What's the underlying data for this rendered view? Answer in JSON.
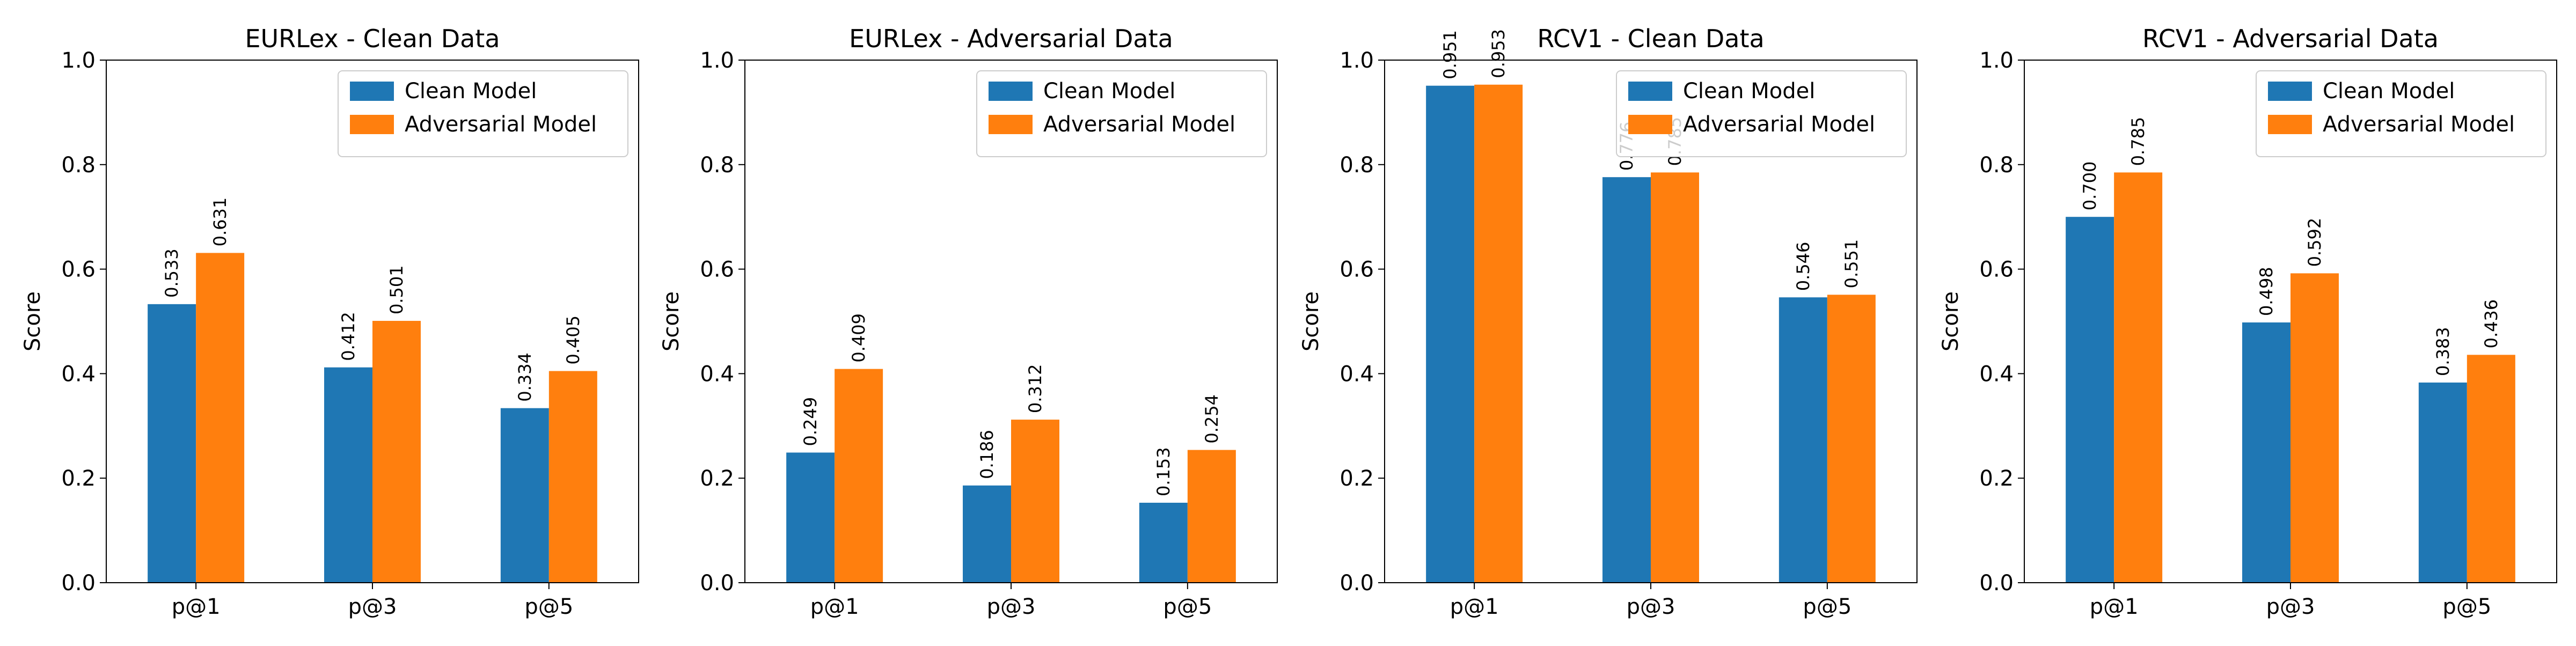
{
  "colors": {
    "clean": "#1f77b4",
    "adversarial": "#ff7f0e"
  },
  "chart_data": [
    {
      "type": "bar",
      "title": "EURLex - Clean Data",
      "xlabel": "",
      "ylabel": "Score",
      "ylim": [
        0,
        1.0
      ],
      "yticks": [
        "0.0",
        "0.2",
        "0.4",
        "0.6",
        "0.8",
        "1.0"
      ],
      "categories": [
        "p@1",
        "p@3",
        "p@5"
      ],
      "legend": "top-right",
      "series": [
        {
          "name": "Clean Model",
          "values": [
            0.533,
            0.412,
            0.334
          ],
          "labels": [
            "0.533",
            "0.412",
            "0.334"
          ]
        },
        {
          "name": "Adversarial Model",
          "values": [
            0.631,
            0.501,
            0.405
          ],
          "labels": [
            "0.631",
            "0.501",
            "0.405"
          ]
        }
      ]
    },
    {
      "type": "bar",
      "title": "EURLex - Adversarial Data",
      "xlabel": "",
      "ylabel": "Score",
      "ylim": [
        0,
        1.0
      ],
      "yticks": [
        "0.0",
        "0.2",
        "0.4",
        "0.6",
        "0.8",
        "1.0"
      ],
      "categories": [
        "p@1",
        "p@3",
        "p@5"
      ],
      "legend": "top-right",
      "series": [
        {
          "name": "Clean Model",
          "values": [
            0.249,
            0.186,
            0.153
          ],
          "labels": [
            "0.249",
            "0.186",
            "0.153"
          ]
        },
        {
          "name": "Adversarial Model",
          "values": [
            0.409,
            0.312,
            0.254
          ],
          "labels": [
            "0.409",
            "0.312",
            "0.254"
          ]
        }
      ]
    },
    {
      "type": "bar",
      "title": "RCV1 - Clean Data",
      "xlabel": "",
      "ylabel": "Score",
      "ylim": [
        0,
        1.0
      ],
      "yticks": [
        "0.0",
        "0.2",
        "0.4",
        "0.6",
        "0.8",
        "1.0"
      ],
      "categories": [
        "p@1",
        "p@3",
        "p@5"
      ],
      "legend": "top-right",
      "series": [
        {
          "name": "Clean Model",
          "values": [
            0.951,
            0.776,
            0.546
          ],
          "labels": [
            "0.951",
            "0.776",
            "0.546"
          ]
        },
        {
          "name": "Adversarial Model",
          "values": [
            0.953,
            0.785,
            0.551
          ],
          "labels": [
            "0.953",
            "0.785",
            "0.551"
          ]
        }
      ]
    },
    {
      "type": "bar",
      "title": "RCV1 - Adversarial Data",
      "xlabel": "",
      "ylabel": "Score",
      "ylim": [
        0,
        1.0
      ],
      "yticks": [
        "0.0",
        "0.2",
        "0.4",
        "0.6",
        "0.8",
        "1.0"
      ],
      "categories": [
        "p@1",
        "p@3",
        "p@5"
      ],
      "legend": "top-right",
      "series": [
        {
          "name": "Clean Model",
          "values": [
            0.7,
            0.498,
            0.383
          ],
          "labels": [
            "0.700",
            "0.498",
            "0.383"
          ]
        },
        {
          "name": "Adversarial Model",
          "values": [
            0.785,
            0.592,
            0.436
          ],
          "labels": [
            "0.785",
            "0.592",
            "0.436"
          ]
        }
      ]
    }
  ]
}
